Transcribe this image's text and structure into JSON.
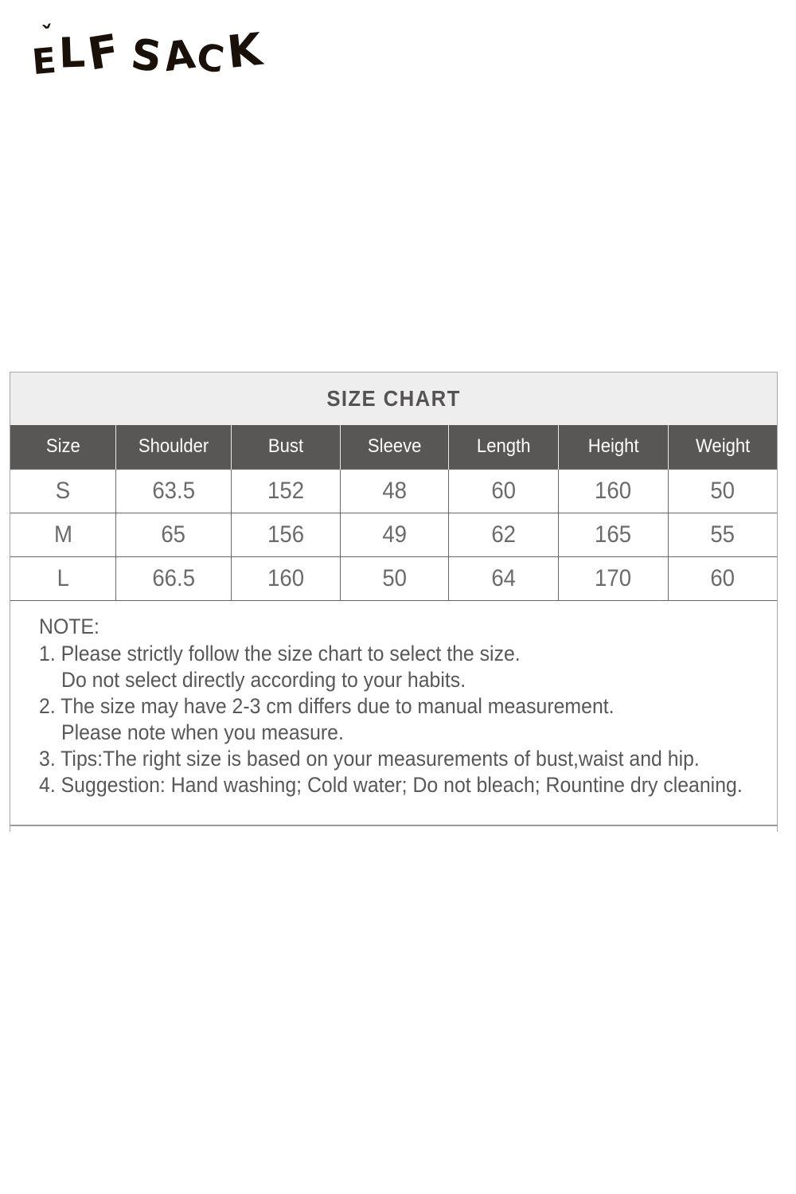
{
  "brand": {
    "name": "ELF SACK",
    "letters": [
      "E",
      "L",
      "F",
      "S",
      "A",
      "C",
      "K"
    ],
    "accent_mark": "ˇ"
  },
  "size_chart": {
    "title": "SIZE CHART",
    "columns": [
      "Size",
      "Shoulder",
      "Bust",
      "Sleeve",
      "Length",
      "Height",
      "Weight"
    ],
    "rows": [
      [
        "S",
        "63.5",
        "152",
        "48",
        "60",
        "160",
        "50"
      ],
      [
        "M",
        "65",
        "156",
        "49",
        "62",
        "165",
        "55"
      ],
      [
        "L",
        "66.5",
        "160",
        "50",
        "64",
        "170",
        "60"
      ]
    ]
  },
  "notes": {
    "heading": "NOTE:",
    "lines": [
      {
        "text": "1. Please strictly follow the size chart to select the size.",
        "indent": false
      },
      {
        "text": "Do not select directly according to your habits.",
        "indent": true
      },
      {
        "text": "2. The size may have 2-3 cm differs due to manual measurement.",
        "indent": false
      },
      {
        "text": "Please note when you measure.",
        "indent": true
      },
      {
        "text": "3. Tips:The right size is based on your measurements of bust,waist and hip.",
        "indent": false
      },
      {
        "text": "4. Suggestion: Hand washing; Cold water; Do not bleach; Rountine dry cleaning.",
        "indent": false
      }
    ]
  },
  "colors": {
    "header_bg": "#595656",
    "header_text": "#fdfdfd",
    "title_bg": "#efeeee",
    "body_text": "#5b5959",
    "border_inner": "#696767",
    "border_outer": "#a7a5a5",
    "logo": "#191009"
  }
}
